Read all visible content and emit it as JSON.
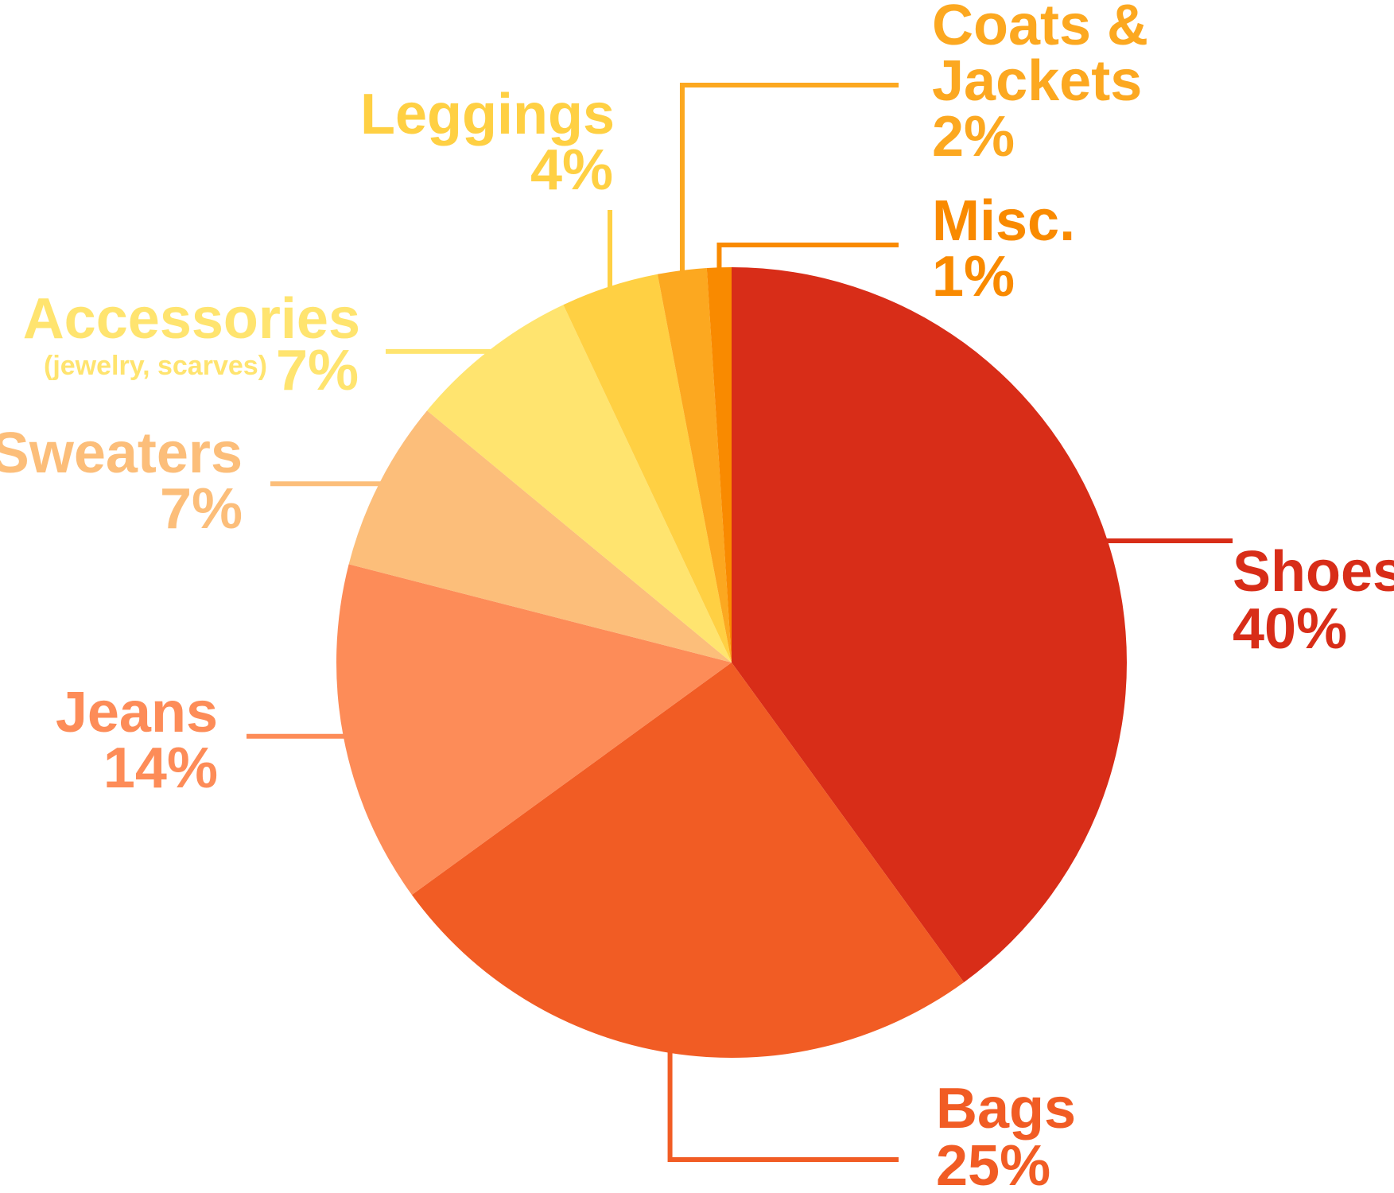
{
  "chart_data": {
    "type": "pie",
    "start_angle_deg": 0,
    "direction": "clockwise",
    "slices": [
      {
        "label": "Shoes",
        "value": 40,
        "value_label": "40%",
        "color": "#D82D18"
      },
      {
        "label": "Bags",
        "value": 25,
        "value_label": "25%",
        "color": "#F15C24"
      },
      {
        "label": "Jeans",
        "value": 14,
        "value_label": "14%",
        "color": "#FD8C58"
      },
      {
        "label": "Sweaters",
        "value": 7,
        "value_label": "7%",
        "color": "#FCBE7A"
      },
      {
        "label": "Accessories",
        "sublabel": "(jewelry, scarves)",
        "value": 7,
        "value_label": "7%",
        "color": "#FFE46F"
      },
      {
        "label": "Leggings",
        "value": 4,
        "value_label": "4%",
        "color": "#FFD043"
      },
      {
        "label_lines": [
          "Coats &",
          "Jackets"
        ],
        "value": 2,
        "value_label": "2%",
        "color": "#FCA820"
      },
      {
        "label": "Misc.",
        "value": 1,
        "value_label": "1%",
        "color": "#F98A00"
      }
    ]
  }
}
